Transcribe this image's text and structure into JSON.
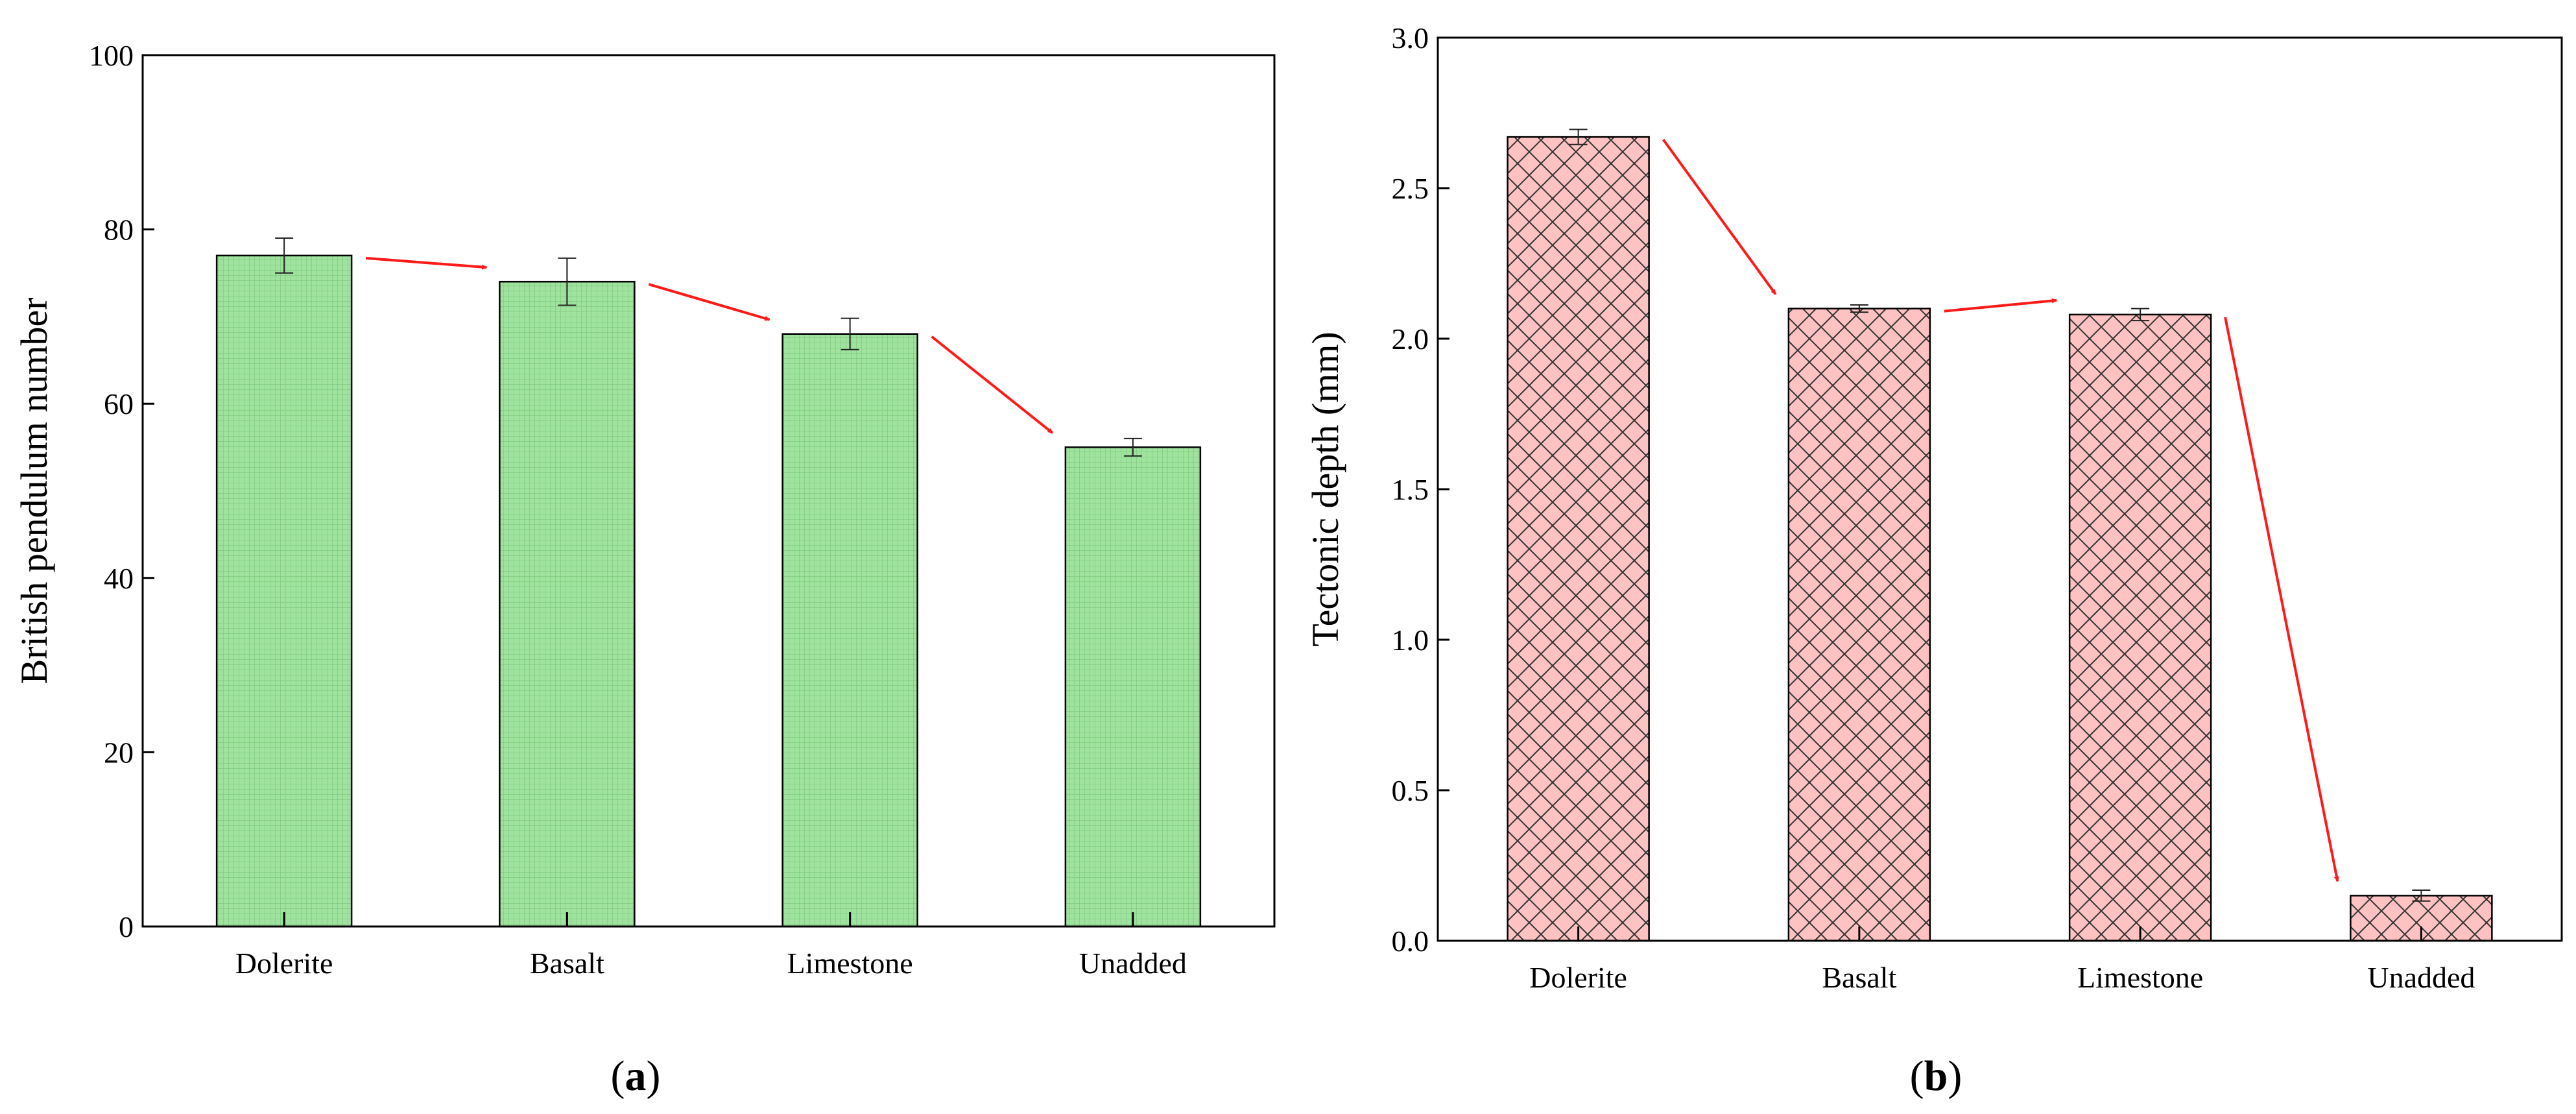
{
  "figure": {
    "panels": [
      "(a)",
      "(b)"
    ]
  },
  "chart_data": [
    {
      "type": "bar",
      "panel_label": "(a)",
      "panel_letter": "a",
      "title": "",
      "xlabel": "",
      "ylabel": "British pendulum number",
      "categories": [
        "Dolerite",
        "Basalt",
        "Limestone",
        "Unadded"
      ],
      "values": [
        77,
        74,
        68,
        55
      ],
      "errors": [
        2.0,
        2.7,
        1.8,
        1.0
      ],
      "ylim": [
        0,
        100
      ],
      "yticks": [
        0,
        20,
        40,
        60,
        80,
        100
      ],
      "ytick_labels": [
        "0",
        "20",
        "40",
        "60",
        "80",
        "100"
      ],
      "grid": false,
      "bar_color": "#9fe39f",
      "pattern": "fine-grid",
      "arrow_color": "#ff1a1a",
      "trend_arrows": [
        {
          "from": "Dolerite",
          "to": "Basalt"
        },
        {
          "from": "Basalt",
          "to": "Limestone"
        },
        {
          "from": "Limestone",
          "to": "Unadded"
        }
      ]
    },
    {
      "type": "bar",
      "panel_label": "(b)",
      "panel_letter": "b",
      "title": "",
      "xlabel": "",
      "ylabel": "Tectonic depth (mm)",
      "categories": [
        "Dolerite",
        "Basalt",
        "Limestone",
        "Unadded"
      ],
      "values": [
        2.67,
        2.1,
        2.08,
        0.15
      ],
      "errors": [
        0.025,
        0.012,
        0.02,
        0.018
      ],
      "ylim": [
        0,
        3.0
      ],
      "yticks": [
        0,
        0.5,
        1.0,
        1.5,
        2.0,
        2.5,
        3.0
      ],
      "ytick_labels": [
        "0.0",
        "0.5",
        "1.0",
        "1.5",
        "2.0",
        "2.5",
        "3.0"
      ],
      "grid": false,
      "bar_color": "#ffc2c2",
      "pattern": "crosshatch",
      "arrow_color": "#ff1a1a",
      "trend_arrows": [
        {
          "from": "Dolerite",
          "to": "Basalt"
        },
        {
          "from": "Basalt",
          "to": "Limestone"
        },
        {
          "from": "Limestone",
          "to": "Unadded"
        }
      ]
    }
  ]
}
